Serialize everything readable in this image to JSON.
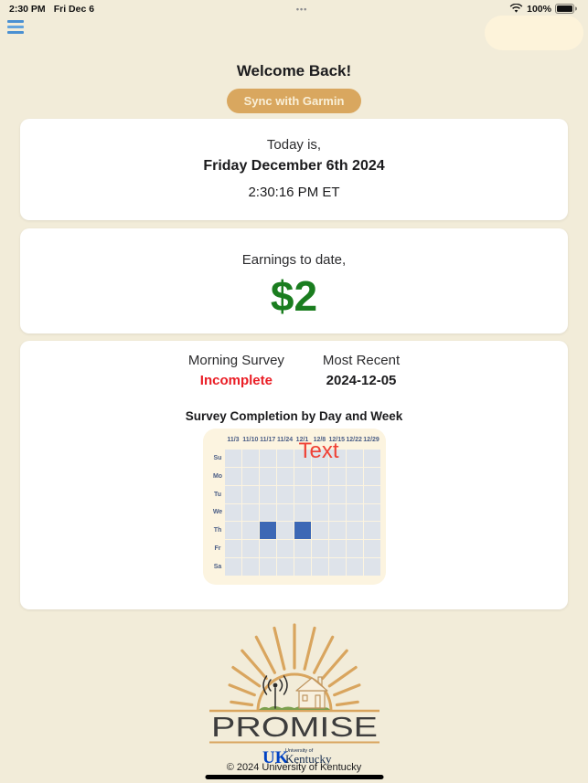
{
  "status_bar": {
    "time": "2:30 PM",
    "date": "Fri Dec 6",
    "center_dots": "•••",
    "battery_percent": "100%",
    "icons": {
      "wifi": "wifi-icon",
      "battery": "battery-full-icon",
      "menu": "hamburger-menu-icon"
    }
  },
  "header": {
    "welcome": "Welcome Back!",
    "sync_button_label": "Sync with Garmin"
  },
  "today_card": {
    "intro": "Today is,",
    "date": "Friday December 6th 2024",
    "time": "2:30:16 PM ET"
  },
  "earnings_card": {
    "label": "Earnings to date,",
    "amount": "$2",
    "amount_color": "#1a7d1f"
  },
  "survey_card": {
    "survey_label": "Morning Survey",
    "survey_status": "Incomplete",
    "status_color": "#ea1d25",
    "recent_label": "Most Recent",
    "recent_date": "2024-12-05",
    "chart_title": "Survey Completion by Day and Week"
  },
  "chart_data": {
    "type": "heatmap",
    "title": "Survey Completion by Day and Week",
    "x_labels": [
      "11/3",
      "11/10",
      "11/17",
      "11/24",
      "12/1",
      "12/8",
      "12/15",
      "12/22",
      "12/29"
    ],
    "y_labels": [
      "Su",
      "Mo",
      "Tu",
      "We",
      "Th",
      "Fr",
      "Sa"
    ],
    "annotation": "Text",
    "filled_cells": [
      {
        "row": 4,
        "col": 2,
        "day": "Th",
        "week": "11/17",
        "value": 1
      },
      {
        "row": 4,
        "col": 4,
        "day": "Th",
        "week": "12/1",
        "value": 1
      }
    ],
    "colors": {
      "empty": "#dee3ea",
      "filled": "#3d68b5",
      "panel_bg": "#fcf4e0",
      "label": "#4a5d85",
      "annotation": "#ef4136"
    },
    "legend": "off",
    "grid": "on"
  },
  "logo": {
    "name": "PROMISE",
    "uk_mark": "UK",
    "university_small": "University of",
    "university_name": "Kentucky"
  },
  "footer": {
    "copyright": "© 2024 University of Kentucky"
  },
  "colors": {
    "background": "#f2ecd9",
    "card": "#ffffff",
    "accent_tan": "#d9a75f",
    "menu_blue": "#4a90d2"
  }
}
